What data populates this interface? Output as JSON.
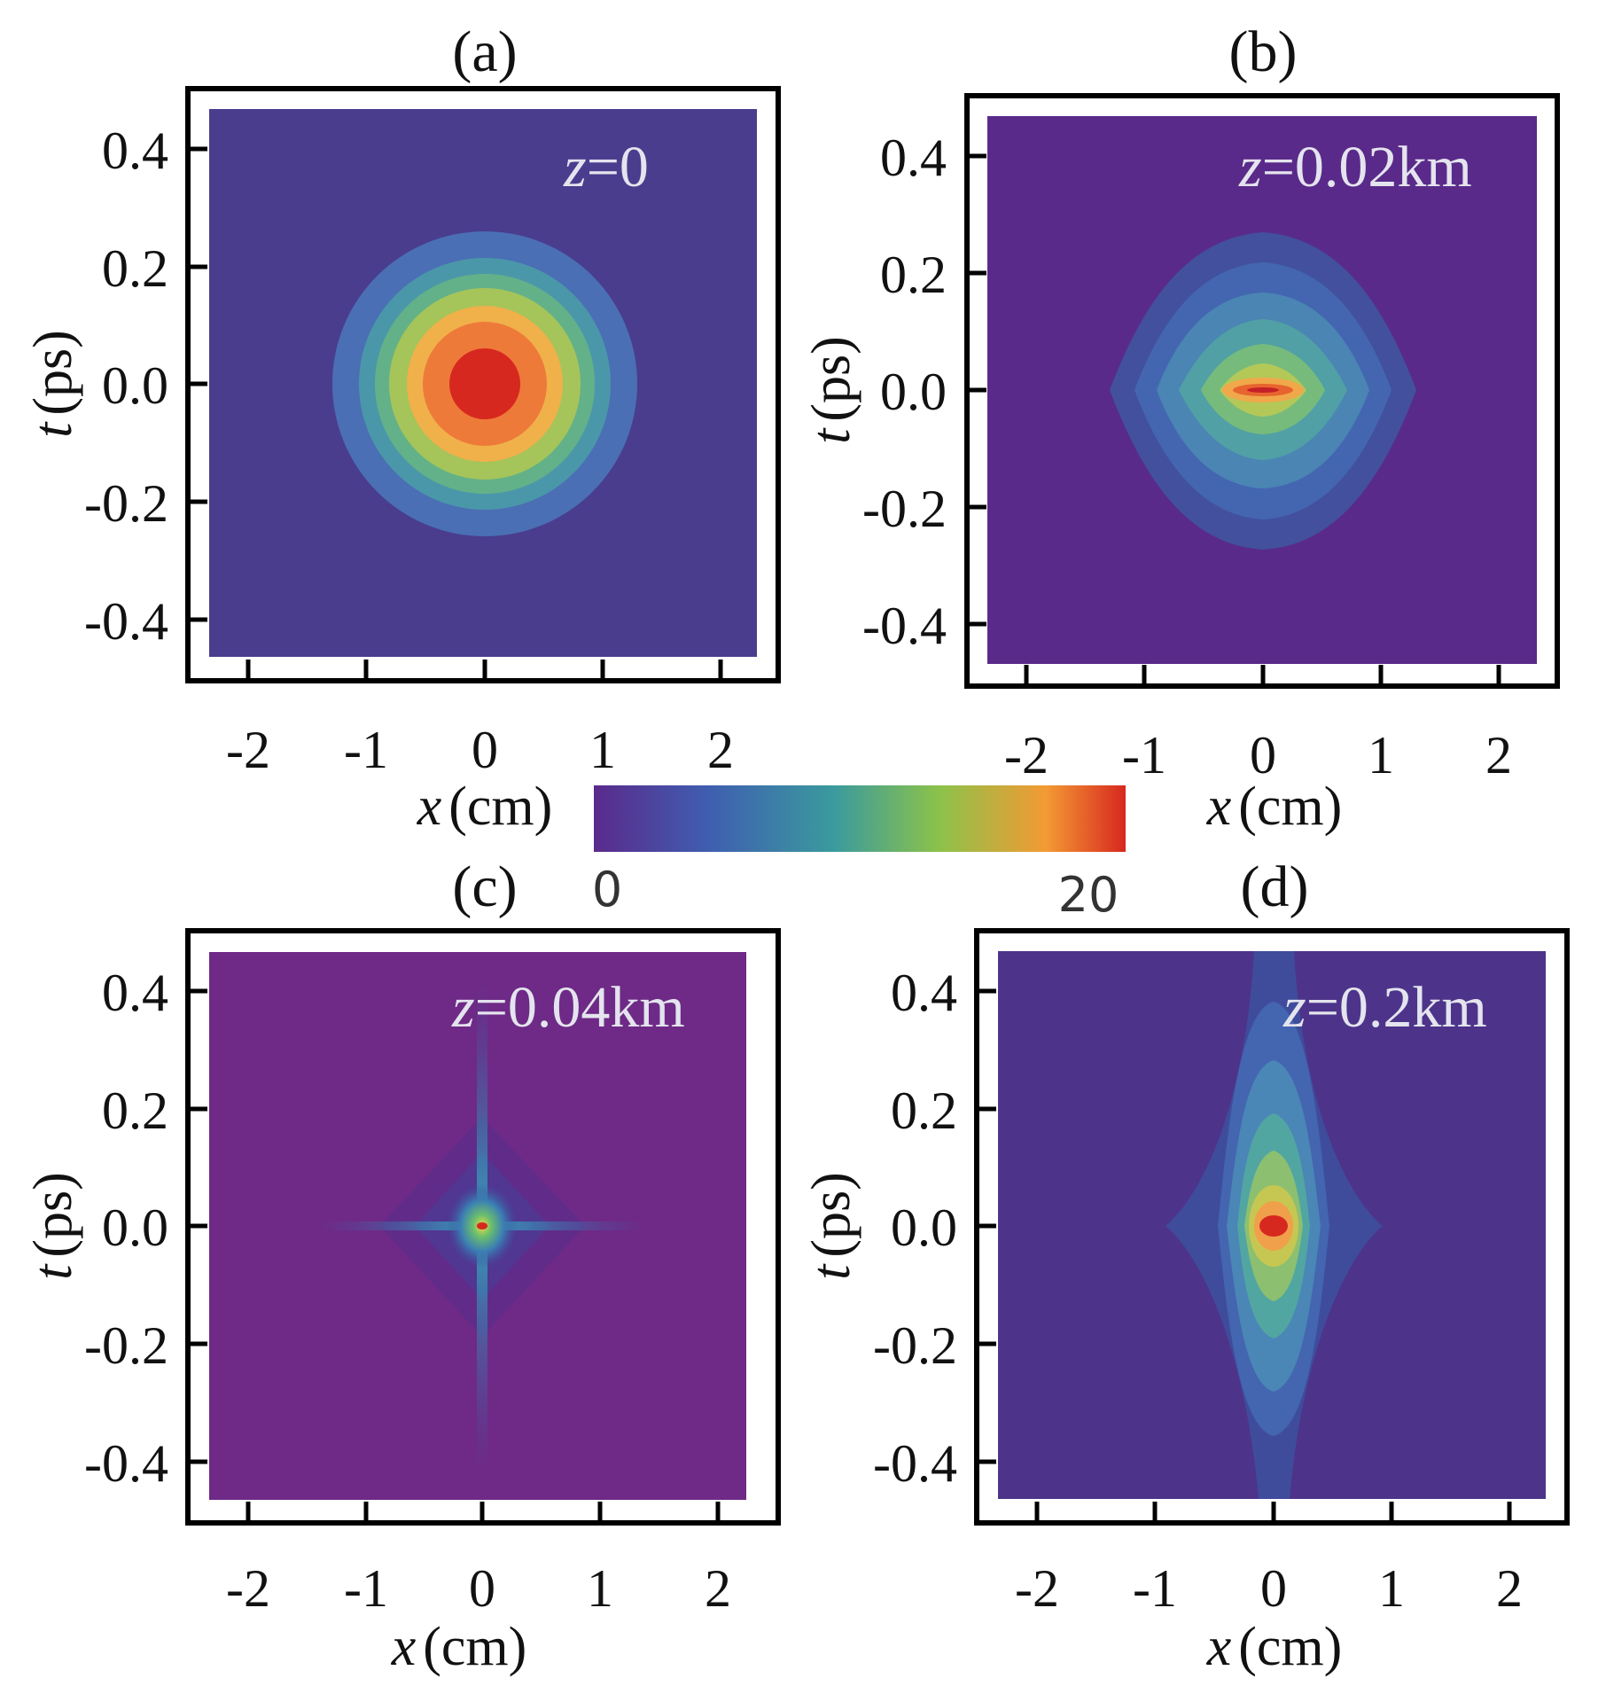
{
  "figure": {
    "colorbar": {
      "min_label": "0",
      "max_label": "20",
      "min": 0,
      "max": 20,
      "colormap": [
        "#5a2a8c",
        "#3f5fb0",
        "#3a9a9e",
        "#8cc24a",
        "#f39a34",
        "#d7281f"
      ]
    }
  },
  "chart_data": [
    {
      "type": "heatmap",
      "panel_label": "(a)",
      "annotation": {
        "var": "z",
        "rest": "=0"
      },
      "description_values": {
        "z_km": 0,
        "peak_intensity": 20,
        "shape": "circular gaussian",
        "width_x_cm": 1.3,
        "width_t_ps": 0.25
      },
      "xlabel": {
        "var": "x",
        "unit": "(cm)"
      },
      "ylabel": {
        "var": "t",
        "unit": "(ps)"
      },
      "xticks": [
        "-2",
        "-1",
        "0",
        "1",
        "2"
      ],
      "yticks": [
        "0.4",
        "0.2",
        "0.0",
        "-0.2",
        "-0.4"
      ],
      "xlim": [
        -2.5,
        2.5
      ],
      "ylim": [
        -0.48,
        0.48
      ]
    },
    {
      "type": "heatmap",
      "panel_label": "(b)",
      "annotation": {
        "var": "z",
        "rest": "=0.02km"
      },
      "description_values": {
        "z_km": 0.02,
        "peak_intensity": 20,
        "shape": "diamond / lens",
        "width_x_cm": 1.3,
        "width_t_ps": 0.27
      },
      "xlabel": {
        "var": "x",
        "unit": "(cm)"
      },
      "ylabel": {
        "var": "t",
        "unit": "(ps)"
      },
      "xticks": [
        "-2",
        "-1",
        "0",
        "1",
        "2"
      ],
      "yticks": [
        "0.4",
        "0.2",
        "0.0",
        "-0.2",
        "-0.4"
      ],
      "xlim": [
        -2.5,
        2.5
      ],
      "ylim": [
        -0.48,
        0.48
      ]
    },
    {
      "type": "heatmap",
      "panel_label": "(c)",
      "annotation": {
        "var": "z",
        "rest": "=0.04km"
      },
      "description_values": {
        "z_km": 0.04,
        "peak_intensity": 20,
        "shape": "sharp cross (X-wave)",
        "width_x_cm": 0.9,
        "width_t_ps": 0.35
      },
      "xlabel": {
        "var": "x",
        "unit": "(cm)"
      },
      "ylabel": {
        "var": "t",
        "unit": "(ps)"
      },
      "xticks": [
        "-2",
        "-1",
        "0",
        "1",
        "2"
      ],
      "yticks": [
        "0.4",
        "0.2",
        "0.0",
        "-0.2",
        "-0.4"
      ],
      "xlim": [
        -2.5,
        2.5
      ],
      "ylim": [
        -0.48,
        0.48
      ]
    },
    {
      "type": "heatmap",
      "panel_label": "(d)",
      "annotation": {
        "var": "z",
        "rest": "=0.2km"
      },
      "description_values": {
        "z_km": 0.2,
        "peak_intensity": 20,
        "shape": "elongated in t",
        "width_x_cm": 0.9,
        "width_t_ps": 0.5
      },
      "xlabel": {
        "var": "x",
        "unit": "(cm)"
      },
      "ylabel": {
        "var": "t",
        "unit": "(ps)"
      },
      "xticks": [
        "-2",
        "-1",
        "0",
        "1",
        "2"
      ],
      "yticks": [
        "0.4",
        "0.2",
        "0.0",
        "-0.2",
        "-0.4"
      ],
      "xlim": [
        -2.5,
        2.5
      ],
      "ylim": [
        -0.48,
        0.48
      ]
    }
  ]
}
